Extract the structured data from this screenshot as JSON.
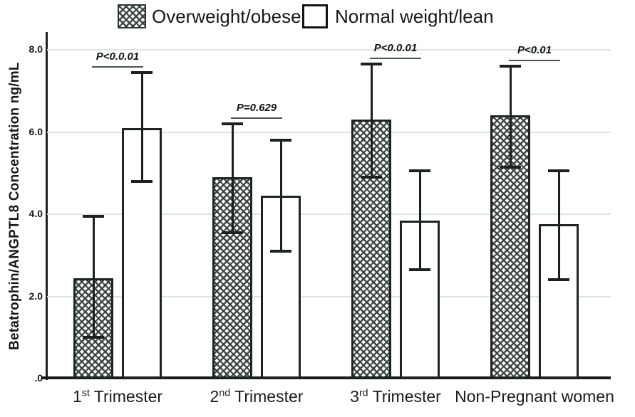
{
  "legend": [
    {
      "label": "Overweight/obese",
      "swatch": "crosshatch"
    },
    {
      "label": "Normal weight/lean",
      "swatch": "plain"
    }
  ],
  "chart_data": {
    "type": "bar",
    "title": "",
    "xlabel": "",
    "ylabel": "Betatrophin/ANGPTL8 Concentration ng/mL",
    "ylim": [
      0,
      8.6
    ],
    "grid": "horizontal",
    "legend_position": "top",
    "yticks": [
      {
        "label": "8.0",
        "value": 8
      },
      {
        "label": "6.0",
        "value": 6
      },
      {
        "label": "4.0",
        "value": 4
      },
      {
        "label": "2.0",
        "value": 2
      },
      {
        "label": ".0",
        "value": 0
      }
    ],
    "categories": [
      "1st Trimester",
      "2nd Trimester",
      "3rd Trimester",
      "Non-Pregnant women"
    ],
    "categories_rich": [
      {
        "num": "1",
        "ord": "st",
        "rest": " Trimester"
      },
      {
        "num": "2",
        "ord": "nd",
        "rest": " Trimester"
      },
      {
        "num": "3",
        "ord": "rd",
        "rest": " Trimester"
      },
      {
        "num": "",
        "ord": "",
        "rest": "Non-Pregnant women"
      }
    ],
    "series": [
      {
        "name": "Overweight/obese",
        "pattern": "crosshatch",
        "values": [
          2.45,
          4.9,
          6.3,
          6.4
        ],
        "err_low": [
          1.0,
          3.55,
          4.9,
          5.15
        ],
        "err_high": [
          3.95,
          6.2,
          7.65,
          7.6
        ]
      },
      {
        "name": "Normal weight/lean",
        "pattern": "plain",
        "values": [
          6.1,
          4.45,
          3.85,
          3.75
        ],
        "err_low": [
          4.8,
          3.1,
          2.65,
          2.4
        ],
        "err_high": [
          7.45,
          5.8,
          5.05,
          5.05
        ]
      }
    ],
    "p_annotations": [
      {
        "group": "1st Trimester",
        "text": "P<0.0.01"
      },
      {
        "group": "2nd Trimester",
        "text": "P=0.629"
      },
      {
        "group": "3rd Trimester",
        "text": "P<0.0.01"
      },
      {
        "group": "Non-Pregnant women",
        "text": "P<0.01"
      }
    ]
  },
  "colors": {
    "bar_outline": "#1d2422",
    "hatch_line": "#36403e",
    "gridline": "#dde4e4",
    "axis": "#171d1b",
    "text": "#14181a"
  }
}
